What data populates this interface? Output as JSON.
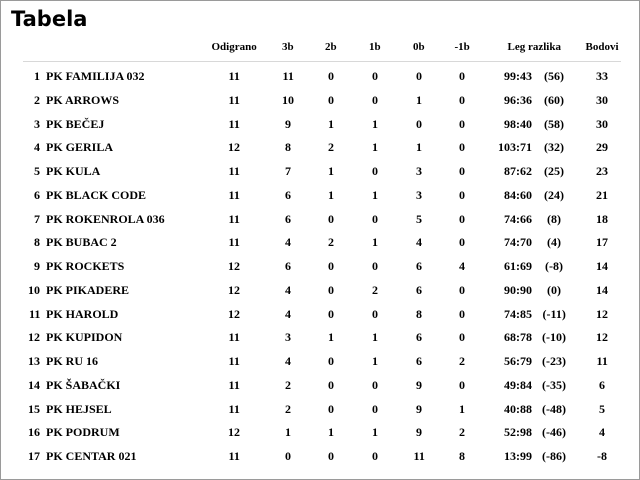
{
  "title": "Tabela",
  "table": {
    "header": [
      "Odigrano",
      "3b",
      "2b",
      "1b",
      "0b",
      "-1b",
      "Leg razlika",
      "Bodovi"
    ],
    "rows": [
      [
        "1",
        "PK FAMILIJA 032",
        "11",
        "11",
        "0",
        "0",
        "0",
        "0",
        "99:43",
        "(56)",
        "33"
      ],
      [
        "2",
        "PK ARROWS",
        "11",
        "10",
        "0",
        "0",
        "1",
        "0",
        "96:36",
        "(60)",
        "30"
      ],
      [
        "3",
        "PK BEČEJ",
        "11",
        "9",
        "1",
        "1",
        "0",
        "0",
        "98:40",
        "(58)",
        "30"
      ],
      [
        "4",
        "PK GERILA",
        "12",
        "8",
        "2",
        "1",
        "1",
        "0",
        "103:71",
        "(32)",
        "29"
      ],
      [
        "5",
        "PK KULA",
        "11",
        "7",
        "1",
        "0",
        "3",
        "0",
        "87:62",
        "(25)",
        "23"
      ],
      [
        "6",
        "PK BLACK CODE",
        "11",
        "6",
        "1",
        "1",
        "3",
        "0",
        "84:60",
        "(24)",
        "21"
      ],
      [
        "7",
        "PK ROKENROLA 036",
        "11",
        "6",
        "0",
        "0",
        "5",
        "0",
        "74:66",
        "(8)",
        "18"
      ],
      [
        "8",
        "PK BUBAC 2",
        "11",
        "4",
        "2",
        "1",
        "4",
        "0",
        "74:70",
        "(4)",
        "17"
      ],
      [
        "9",
        "PK ROCKETS",
        "12",
        "6",
        "0",
        "0",
        "6",
        "4",
        "61:69",
        "(-8)",
        "14"
      ],
      [
        "10",
        "PK PIKADERE",
        "12",
        "4",
        "0",
        "2",
        "6",
        "0",
        "90:90",
        "(0)",
        "14"
      ],
      [
        "11",
        "PK HAROLD",
        "12",
        "4",
        "0",
        "0",
        "8",
        "0",
        "74:85",
        "(-11)",
        "12"
      ],
      [
        "12",
        "PK KUPIDON",
        "11",
        "3",
        "1",
        "1",
        "6",
        "0",
        "68:78",
        "(-10)",
        "12"
      ],
      [
        "13",
        "PK RU 16",
        "11",
        "4",
        "0",
        "1",
        "6",
        "2",
        "56:79",
        "(-23)",
        "11"
      ],
      [
        "14",
        "PK ŠABAČKI",
        "11",
        "2",
        "0",
        "0",
        "9",
        "0",
        "49:84",
        "(-35)",
        "6"
      ],
      [
        "15",
        "PK HEJSEL",
        "11",
        "2",
        "0",
        "0",
        "9",
        "1",
        "40:88",
        "(-48)",
        "5"
      ],
      [
        "16",
        "PK PODRUM",
        "12",
        "1",
        "1",
        "1",
        "9",
        "2",
        "52:98",
        "(-46)",
        "4"
      ],
      [
        "17",
        "PK CENTAR 021",
        "11",
        "0",
        "0",
        "0",
        "11",
        "8",
        "13:99",
        "(-86)",
        "-8"
      ]
    ]
  }
}
